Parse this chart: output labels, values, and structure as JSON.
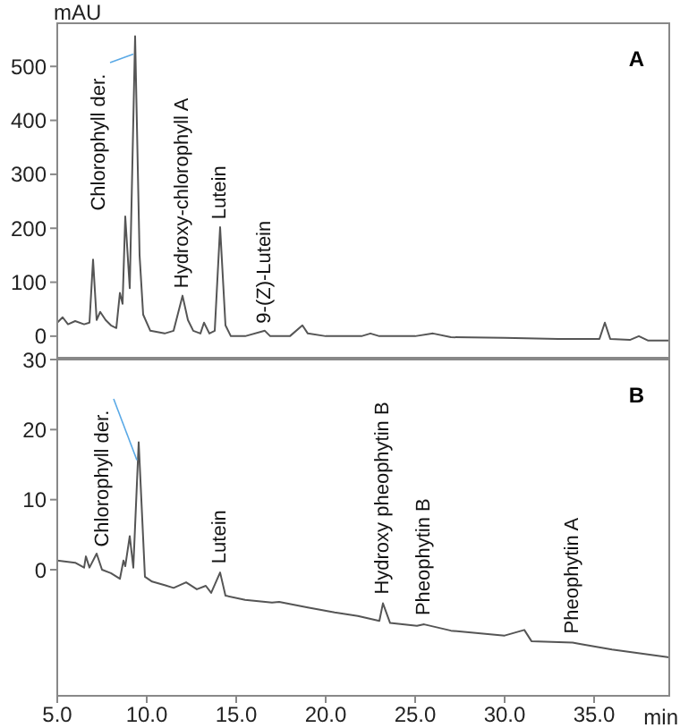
{
  "chart_data": [
    {
      "type": "line",
      "title": "A",
      "ylabel": "mAU",
      "tick_labels": "y",
      "xlim": [
        5,
        39.2
      ],
      "ylim": [
        -40,
        580
      ],
      "yticks": [
        0,
        100,
        200,
        300,
        400,
        500
      ],
      "series": [
        {
          "color": "#555555",
          "x": [
            5,
            5.3,
            5.6,
            6,
            6.5,
            6.8,
            7,
            7.2,
            7.4,
            7.7,
            8,
            8.3,
            8.5,
            8.65,
            8.8,
            9.05,
            9.35,
            9.6,
            9.8,
            10.2,
            11,
            11.5,
            12,
            12.3,
            12.6,
            13,
            13.2,
            13.5,
            13.8,
            14.1,
            14.4,
            14.7,
            15.5,
            16.6,
            16.9,
            18,
            18.7,
            19,
            20,
            22,
            22.5,
            23,
            25,
            26,
            27,
            30,
            33,
            35.3,
            35.6,
            35.9,
            37,
            37.5,
            38,
            39.2
          ],
          "values": [
            25,
            35,
            22,
            28,
            22,
            25,
            142,
            30,
            45,
            30,
            20,
            15,
            80,
            60,
            222,
            89,
            556,
            150,
            40,
            10,
            5,
            10,
            75,
            30,
            10,
            5,
            25,
            5,
            10,
            202,
            20,
            0,
            0,
            10,
            0,
            0,
            20,
            5,
            0,
            0,
            5,
            0,
            0,
            5,
            -2,
            -3,
            -5,
            -5,
            25,
            -5,
            -7,
            0,
            -8,
            -8
          ]
        }
      ],
      "annotations": [
        {
          "text": "Chlorophyll der.",
          "x": 9.35,
          "y": 556
        },
        {
          "text": "Hydroxy-chlorophyll A",
          "x": 12,
          "y": 75
        },
        {
          "text": "Lutein",
          "x": 14.1,
          "y": 202
        },
        {
          "text": "9-(Z)-Lutein",
          "x": 16.6,
          "y": 10
        }
      ]
    },
    {
      "type": "line",
      "title": "B",
      "xlabel": "min",
      "xlim": [
        5,
        39.2
      ],
      "xticks": [
        {
          "value": 5,
          "label": "5.0"
        },
        {
          "value": 10,
          "label": "10.0"
        },
        {
          "value": 15,
          "label": "15.0"
        },
        {
          "value": 20,
          "label": "20.0"
        },
        {
          "value": 25,
          "label": "25.0"
        },
        {
          "value": 30,
          "label": "30.0"
        },
        {
          "value": 35,
          "label": "35.0"
        }
      ],
      "ylim": [
        -18,
        30
      ],
      "yticks": [
        0,
        10,
        20,
        30
      ],
      "series": [
        {
          "color": "#555555",
          "x": [
            5,
            6,
            6.5,
            6.6,
            6.8,
            7.2,
            7.5,
            8,
            8.5,
            8.7,
            8.8,
            9.05,
            9.25,
            9.55,
            9.9,
            10.3,
            11,
            11.5,
            12.2,
            12.8,
            13.3,
            13.6,
            14.1,
            14.4,
            15.5,
            17,
            17.4,
            19,
            20.5,
            21.8,
            23,
            23.2,
            23.6,
            25.1,
            25.5,
            27,
            30,
            31.1,
            31.5,
            33.8,
            34.2,
            36,
            39.2
          ],
          "values": [
            1.3,
            1,
            0.3,
            1.9,
            0.3,
            2.3,
            0,
            -0.5,
            -1.3,
            1.3,
            0.5,
            4.8,
            0.3,
            18.2,
            -1,
            -1.7,
            -2.2,
            -2.6,
            -1.8,
            -2.8,
            -2.3,
            -3.3,
            -0.4,
            -3.7,
            -4.3,
            -4.7,
            -4.6,
            -5.4,
            -6.1,
            -6.6,
            -7.3,
            -4.8,
            -7.6,
            -8,
            -7.8,
            -8.7,
            -9.4,
            -8.6,
            -10.2,
            -10.4,
            -10.6,
            -11.4,
            -12.5
          ]
        }
      ],
      "annotations": [
        {
          "text": "Chlorophyll der.",
          "x": 9.55,
          "y": 18.2
        },
        {
          "text": "Lutein",
          "x": 14.1,
          "y": -0.4
        },
        {
          "text": "Hydroxy pheophytin B",
          "x": 23.2,
          "y": -4.8
        },
        {
          "text": "Pheophytin B",
          "x": 25.5,
          "y": -7.8
        },
        {
          "text": "Pheophytin A",
          "x": 33.8,
          "y": -10.4
        }
      ]
    }
  ]
}
